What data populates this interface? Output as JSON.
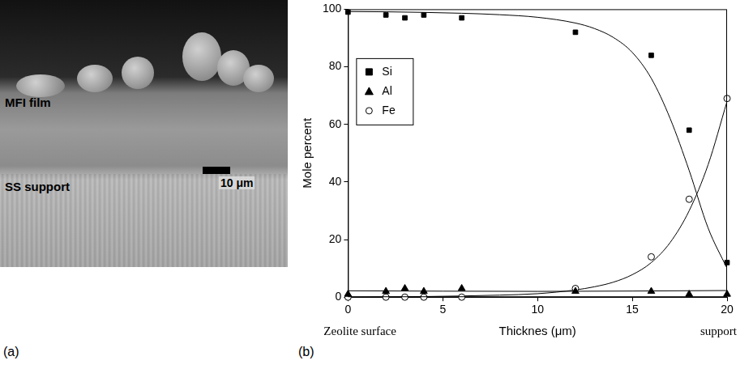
{
  "figure": {
    "panel_a": {
      "label": "(a)",
      "film_label": "MFI film",
      "support_label": "SS support",
      "scale_bar": "10 μm"
    },
    "panel_b_label": "(b)"
  },
  "chart_data": {
    "type": "scatter",
    "x_label": "Thicknes (μm)",
    "y_label": "Mole percent",
    "x": [
      0,
      2,
      3,
      4,
      6,
      12,
      16,
      18,
      20
    ],
    "series": [
      {
        "name": "Si",
        "color": "#000000",
        "marker": "square",
        "values": [
          99,
          98,
          97,
          98,
          97,
          92,
          84,
          58,
          12
        ],
        "fit_x": [
          0,
          2,
          4,
          6,
          8,
          10,
          12,
          13,
          14,
          15,
          16,
          17,
          18,
          19,
          20
        ],
        "fit_values": [
          99.2,
          99.1,
          98.9,
          98.6,
          98.1,
          97.2,
          95.2,
          93.3,
          90.2,
          85,
          76,
          62,
          44,
          24,
          10
        ]
      },
      {
        "name": "Al",
        "color": "#000000",
        "marker": "triangle",
        "values": [
          1,
          2,
          3,
          2,
          3,
          2,
          2,
          1,
          1
        ],
        "fit_x": [
          0,
          10,
          20
        ],
        "fit_values": [
          2.2,
          2.0,
          2.3
        ]
      },
      {
        "name": "Fe",
        "color": "#000000",
        "marker": "open_circle",
        "values": [
          0,
          0,
          0,
          0,
          0,
          3,
          14,
          34,
          69
        ],
        "fit_x": [
          0,
          2,
          4,
          6,
          8,
          10,
          12,
          13,
          14,
          15,
          16,
          17,
          18,
          19,
          20
        ],
        "fit_values": [
          0,
          0.1,
          0.2,
          0.4,
          0.7,
          1.2,
          2.5,
          3.6,
          5.2,
          7.8,
          12,
          19,
          30,
          46,
          68
        ]
      }
    ],
    "annotations": [
      {
        "text": "Zeolite surface",
        "x": 0
      },
      {
        "text": "support",
        "x": 20
      }
    ],
    "xlim": [
      0,
      20
    ],
    "xticks": [
      0,
      5,
      10,
      15,
      20
    ],
    "ylim": [
      0,
      100
    ],
    "yticks": [
      0,
      20,
      40,
      60,
      80,
      100
    ],
    "grid": false,
    "legend": "upper left"
  }
}
